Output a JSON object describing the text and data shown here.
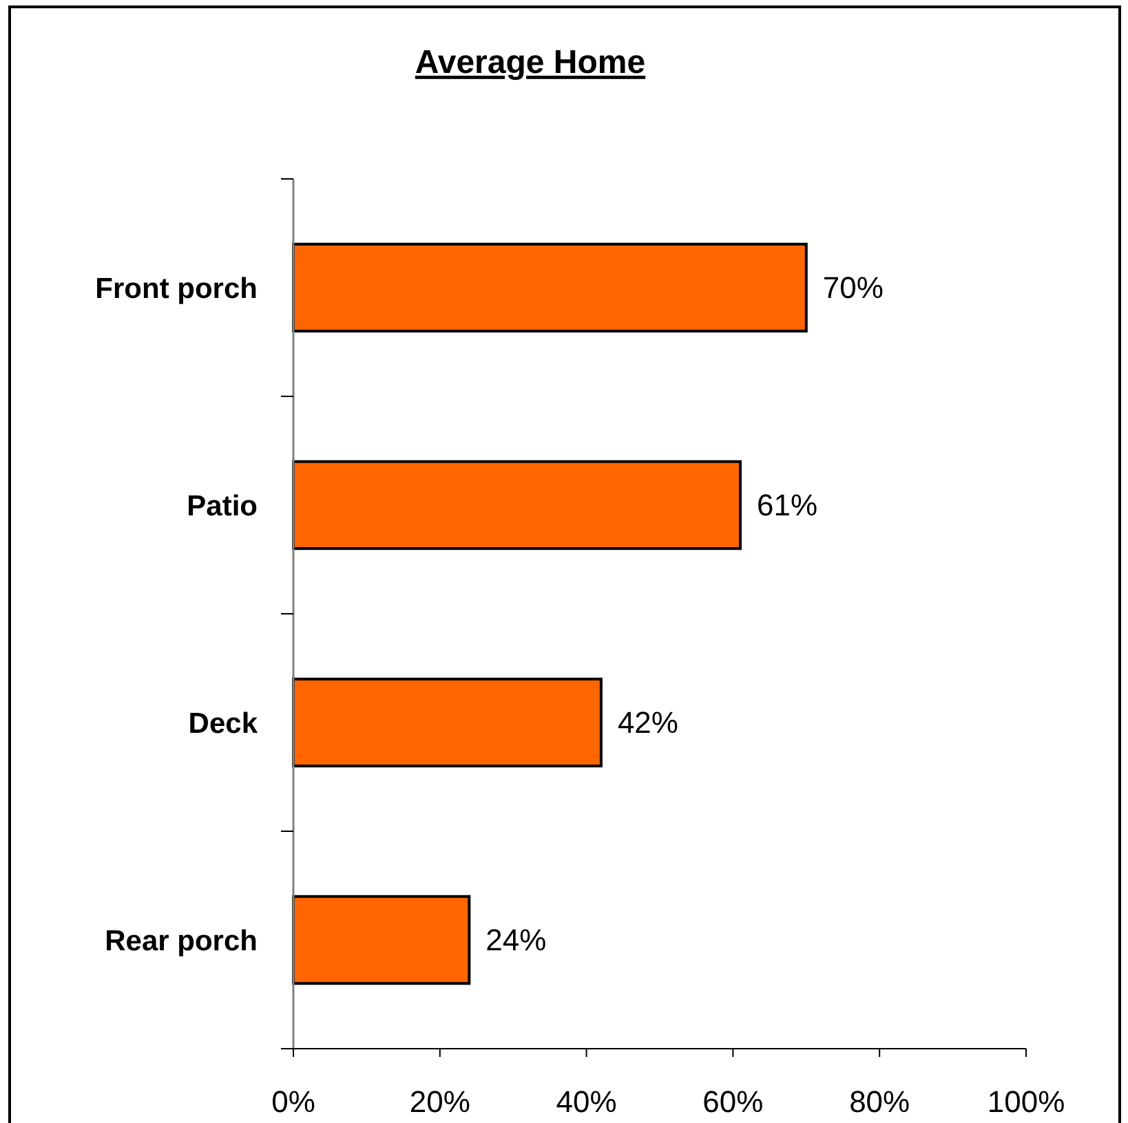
{
  "chart_data": {
    "type": "bar",
    "orientation": "horizontal",
    "title": "Average Home",
    "categories": [
      "Front porch",
      "Patio",
      "Deck",
      "Rear porch"
    ],
    "values": [
      70,
      61,
      42,
      24
    ],
    "color": "#ff6600",
    "value_labels": [
      "70%",
      "61%",
      "42%",
      "24%"
    ],
    "xlim": [
      0,
      100
    ],
    "xticks": [
      {
        "value": 0,
        "label": "0%"
      },
      {
        "value": 20,
        "label": "20%"
      },
      {
        "value": 40,
        "label": "40%"
      },
      {
        "value": 60,
        "label": "60%"
      },
      {
        "value": 80,
        "label": "80%"
      },
      {
        "value": 100,
        "label": "100%"
      }
    ]
  }
}
